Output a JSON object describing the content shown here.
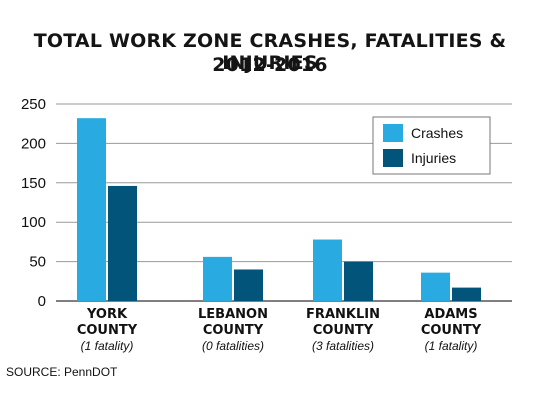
{
  "chart_data": {
    "type": "bar",
    "title": "TOTAL WORK ZONE CRASHES, FATALITIES & INJURIES",
    "subtitle": "2012-2016",
    "categories": [
      {
        "line1": "YORK",
        "line2": "COUNTY",
        "note": "(1 fatality)"
      },
      {
        "line1": "LEBANON",
        "line2": "COUNTY",
        "note": "(0 fatalities)"
      },
      {
        "line1": "FRANKLIN",
        "line2": "COUNTY",
        "note": "(3 fatalities)"
      },
      {
        "line1": "ADAMS",
        "line2": "COUNTY",
        "note": "(1 fatality)"
      }
    ],
    "series": [
      {
        "name": "Crashes",
        "color": "#29aae1",
        "values": [
          232,
          56,
          78,
          36
        ]
      },
      {
        "name": "Injuries",
        "color": "#03547a",
        "values": [
          146,
          40,
          50,
          17
        ]
      }
    ],
    "ylim": [
      0,
      250
    ],
    "yticks": [
      0,
      50,
      100,
      150,
      200,
      250
    ],
    "grid": true,
    "legend_position": "top-right"
  },
  "source": "SOURCE: PennDOT"
}
